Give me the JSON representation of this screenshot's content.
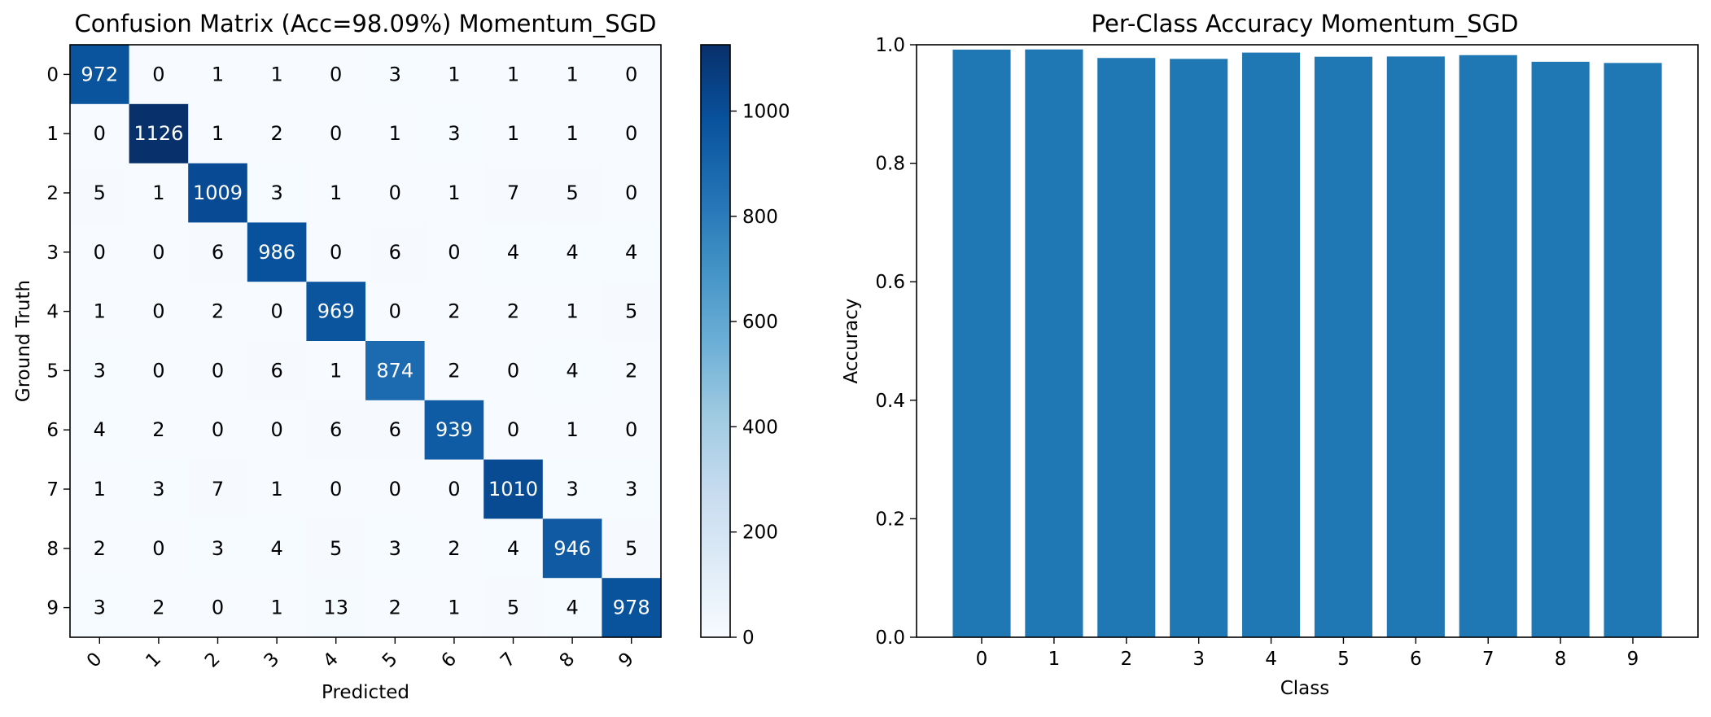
{
  "chart_data": [
    {
      "type": "heatmap",
      "title": "Confusion Matrix (Acc=98.09%) Momentum_SGD",
      "xlabel": "Predicted",
      "ylabel": "Ground Truth",
      "x_tick_labels": [
        "0",
        "1",
        "2",
        "3",
        "4",
        "5",
        "6",
        "7",
        "8",
        "9"
      ],
      "y_tick_labels": [
        "0",
        "1",
        "2",
        "3",
        "4",
        "5",
        "6",
        "7",
        "8",
        "9"
      ],
      "matrix": [
        [
          972,
          0,
          1,
          1,
          0,
          3,
          1,
          1,
          1,
          0
        ],
        [
          0,
          1126,
          1,
          2,
          0,
          1,
          3,
          1,
          1,
          0
        ],
        [
          5,
          1,
          1009,
          3,
          1,
          0,
          1,
          7,
          5,
          0
        ],
        [
          0,
          0,
          6,
          986,
          0,
          6,
          0,
          4,
          4,
          4
        ],
        [
          1,
          0,
          2,
          0,
          969,
          0,
          2,
          2,
          1,
          5
        ],
        [
          3,
          0,
          0,
          6,
          1,
          874,
          2,
          0,
          4,
          2
        ],
        [
          4,
          2,
          0,
          0,
          6,
          6,
          939,
          0,
          1,
          0
        ],
        [
          1,
          3,
          7,
          1,
          0,
          0,
          0,
          1010,
          3,
          3
        ],
        [
          2,
          0,
          3,
          4,
          5,
          3,
          2,
          4,
          946,
          5
        ],
        [
          3,
          2,
          0,
          1,
          13,
          2,
          1,
          5,
          4,
          978
        ]
      ],
      "colormap": "Blues",
      "colorbar": {
        "range": [
          0,
          1126
        ],
        "ticks": [
          0,
          200,
          400,
          600,
          800,
          1000
        ],
        "tick_labels": [
          "0",
          "200",
          "400",
          "600",
          "800",
          "1000"
        ]
      },
      "colors": {
        "low": "#f7fbff",
        "high": "#08306b",
        "text_light": "#ffffff",
        "text_dark": "#000000"
      }
    },
    {
      "type": "bar",
      "title": "Per-Class Accuracy Momentum_SGD",
      "xlabel": "Class",
      "ylabel": "Accuracy",
      "categories": [
        "0",
        "1",
        "2",
        "3",
        "4",
        "5",
        "6",
        "7",
        "8",
        "9"
      ],
      "values": [
        0.9918,
        0.9921,
        0.9777,
        0.9762,
        0.9868,
        0.9798,
        0.9802,
        0.9825,
        0.9713,
        0.9693
      ],
      "ylim": [
        0,
        1.0
      ],
      "y_ticks": [
        0,
        0.2,
        0.4,
        0.6,
        0.8,
        1.0
      ],
      "y_tick_labels": [
        "0.0",
        "0.2",
        "0.4",
        "0.6",
        "0.8",
        "1.0"
      ],
      "bar_color": "#1f77b4"
    }
  ]
}
